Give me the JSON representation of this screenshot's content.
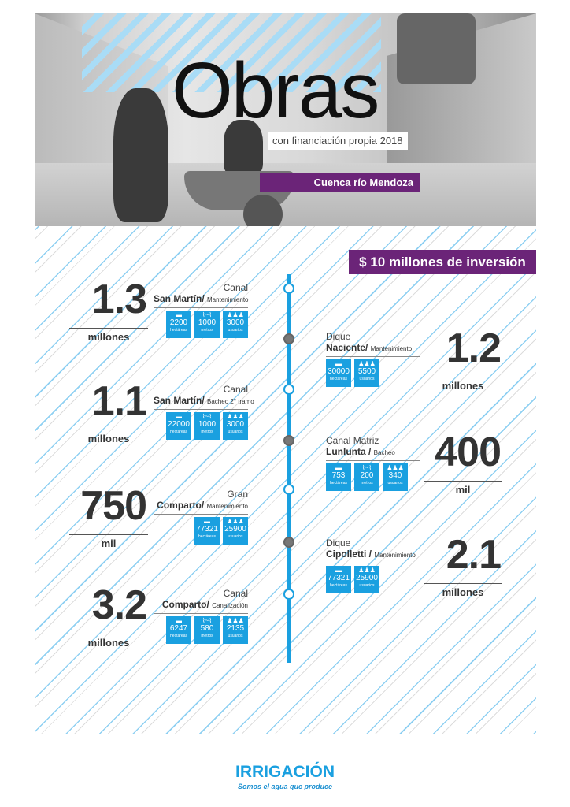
{
  "header": {
    "title": "Obras",
    "subtitle": "con financiación propia 2018",
    "region": "Cuenca río Mendoza",
    "investment": "$ 10 millones de inversión"
  },
  "colors": {
    "blue": "#1aa0e0",
    "purple": "#6b2478"
  },
  "captions": {
    "hectareas": "hectáreas",
    "metros": "metros",
    "usuarios": "usuarios"
  },
  "icons": {
    "hectareas": "land-plot-icon",
    "metros": "pipe-icon",
    "usuarios": "users-icon"
  },
  "works": [
    {
      "side": "left",
      "line1": "Canal",
      "name": "San Martín/",
      "type": "Mantenimiento",
      "amount": "1.3",
      "unit": "millones",
      "hectareas": "2200",
      "metros": "1000",
      "usuarios": "3000"
    },
    {
      "side": "right",
      "line1": "Dique",
      "name": "Naciente/",
      "type": "Mantenimiento",
      "amount": "1.2",
      "unit": "millones",
      "hectareas": "30000",
      "usuarios": "5500"
    },
    {
      "side": "left",
      "line1": "Canal",
      "name": "San Martín/",
      "type": "Bacheo 2° tramo",
      "amount": "1.1",
      "unit": "millones",
      "hectareas": "22000",
      "metros": "1000",
      "usuarios": "3000"
    },
    {
      "side": "right",
      "line1": "Canal Matriz",
      "name": "Lunlunta /",
      "type": "Bacheo",
      "amount": "400",
      "unit": "mil",
      "hectareas": "753",
      "metros": "200",
      "usuarios": "340"
    },
    {
      "side": "left",
      "line1": "Gran",
      "name": "Comparto/",
      "type": "Mantenimiento",
      "amount": "750",
      "unit": "mil",
      "hectareas": "77321",
      "usuarios": "25900"
    },
    {
      "side": "right",
      "line1": "Dique",
      "name": "Cipolletti /",
      "type": "Mantenimiento",
      "amount": "2.1",
      "unit": "millones",
      "hectareas": "77321",
      "usuarios": "25900"
    },
    {
      "side": "left",
      "line1": "Canal",
      "name": "Comparto/",
      "type": "Canalización",
      "amount": "3.2",
      "unit": "millones",
      "hectareas": "6247",
      "metros": "580",
      "usuarios": "2135"
    }
  ],
  "footer": {
    "logo": "IRRIGACIÓN",
    "tagline": "Somos el agua que produce"
  }
}
